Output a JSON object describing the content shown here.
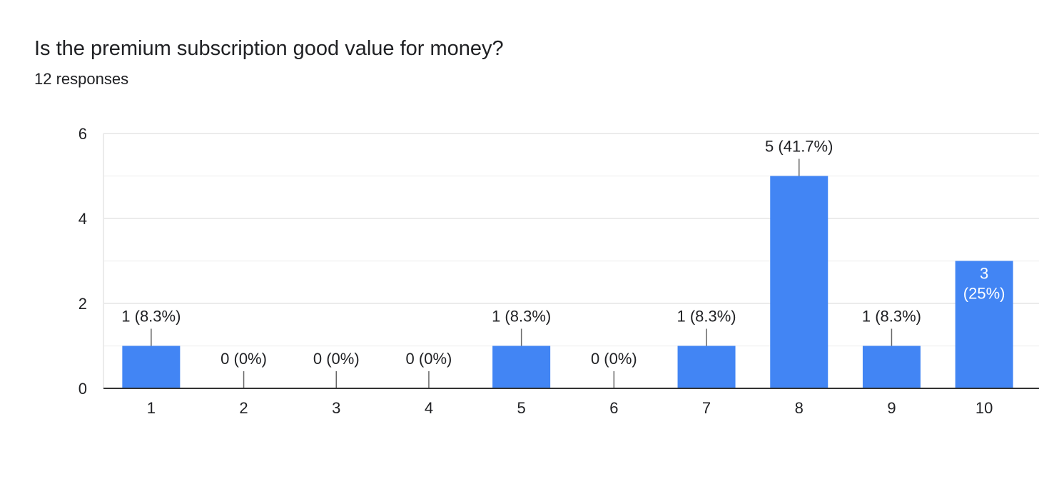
{
  "question": {
    "title": "Is the premium subscription good value for money?",
    "responses_text": "12 responses"
  },
  "colors": {
    "bar": "#4285f4",
    "grid": "#ebebeb",
    "axis": "#333333",
    "text": "#202124",
    "leader": "#666666",
    "inside_label": "#ffffff"
  },
  "chart_data": {
    "type": "bar",
    "title": "Is the premium subscription good value for money?",
    "subtitle": "12 responses",
    "categories": [
      "1",
      "2",
      "3",
      "4",
      "5",
      "6",
      "7",
      "8",
      "9",
      "10"
    ],
    "values": [
      1,
      0,
      0,
      0,
      1,
      0,
      1,
      5,
      1,
      3
    ],
    "data_labels": [
      "1 (8.3%)",
      "0 (0%)",
      "0 (0%)",
      "0 (0%)",
      "1 (8.3%)",
      "0 (0%)",
      "1 (8.3%)",
      "5 (41.7%)",
      "1 (8.3%)",
      "3 (25%)"
    ],
    "inside_label_index": 9,
    "inside_label_lines": [
      "3",
      "(25%)"
    ],
    "ylim": [
      0,
      6
    ],
    "yticks": [
      0,
      2,
      4,
      6
    ],
    "minor_gridlines": [
      1,
      3,
      5
    ],
    "xlabel": "",
    "ylabel": "",
    "grid": true,
    "legend": "none"
  }
}
